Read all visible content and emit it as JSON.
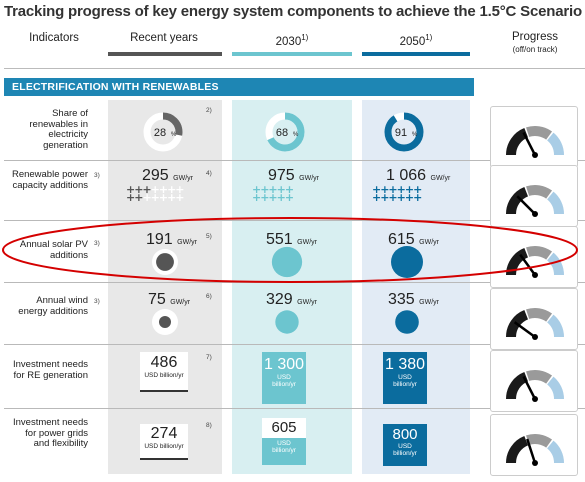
{
  "title": "Tracking progress of key energy system components to achieve the 1.5°C Scenario",
  "headers": {
    "indicators": "Indicators",
    "recent": "Recent years",
    "y2030": "2030",
    "y2030_sup": "1)",
    "y2050": "2050",
    "y2050_sup": "1)",
    "progress": "Progress",
    "progress_sub": "(off/on track)"
  },
  "section": "ELECTRIFICATION WITH RENEWABLES",
  "colors": {
    "recent": "#555555",
    "y2030": "#6cc5cf",
    "y2050": "#0b6c9e",
    "section": "#1e86b4",
    "panel_recent": "#e8e8e8",
    "panel_2030": "#d8eff1",
    "panel_2050": "#e2ebf5",
    "highlight": "#d40000"
  },
  "rows": [
    {
      "label": "Share of renewables in electricity generation",
      "note_label": "",
      "note_value": "2)",
      "recent": "28",
      "y2030": "68",
      "y2050": "91",
      "unit": "%",
      "gauge_level": 0.35
    },
    {
      "label": "Renewable power capacity additions",
      "note_label": "3)",
      "note_value": "4)",
      "recent": "295",
      "y2030": "975",
      "y2050": "1 066",
      "unit": "GW/yr",
      "gauge_level": 0.25
    },
    {
      "label": "Annual solar PV additions",
      "note_label": "3)",
      "note_value": "5)",
      "recent": "191",
      "y2030": "551",
      "y2050": "615",
      "unit": "GW/yr",
      "gauge_level": 0.3
    },
    {
      "label": "Annual wind energy additions",
      "note_label": "3)",
      "note_value": "6)",
      "recent": "75",
      "y2030": "329",
      "y2050": "335",
      "unit": "GW/yr",
      "gauge_level": 0.2
    },
    {
      "label": "Investment needs for RE generation",
      "note_label": "",
      "note_value": "7)",
      "recent": "486",
      "y2030": "1 300",
      "y2050": "1 380",
      "unit": "USD billion/yr",
      "unit_a": "USD",
      "unit_b": "billion/yr",
      "gauge_level": 0.35
    },
    {
      "label": "Investment needs for power grids and flexibility",
      "note_label": "",
      "note_value": "8)",
      "recent": "274",
      "y2030": "605",
      "y2050": "800",
      "unit": "USD billion/yr",
      "unit_a": "USD",
      "unit_b": "billion/yr",
      "gauge_level": 0.4
    }
  ],
  "chart_data": {
    "type": "table",
    "title": "Tracking progress of key energy system components to achieve the 1.5°C Scenario",
    "categories": [
      "Recent years",
      "2030",
      "2050"
    ],
    "series": [
      {
        "name": "Share of renewables in electricity generation (%)",
        "values": [
          28,
          68,
          91
        ]
      },
      {
        "name": "Renewable power capacity additions (GW/yr)",
        "values": [
          295,
          975,
          1066
        ]
      },
      {
        "name": "Annual solar PV additions (GW/yr)",
        "values": [
          191,
          551,
          615
        ]
      },
      {
        "name": "Annual wind energy additions (GW/yr)",
        "values": [
          75,
          329,
          335
        ]
      },
      {
        "name": "Investment needs for RE generation (USD billion/yr)",
        "values": [
          486,
          1300,
          1380
        ]
      },
      {
        "name": "Investment needs for power grids and flexibility (USD billion/yr)",
        "values": [
          274,
          605,
          800
        ]
      }
    ]
  }
}
